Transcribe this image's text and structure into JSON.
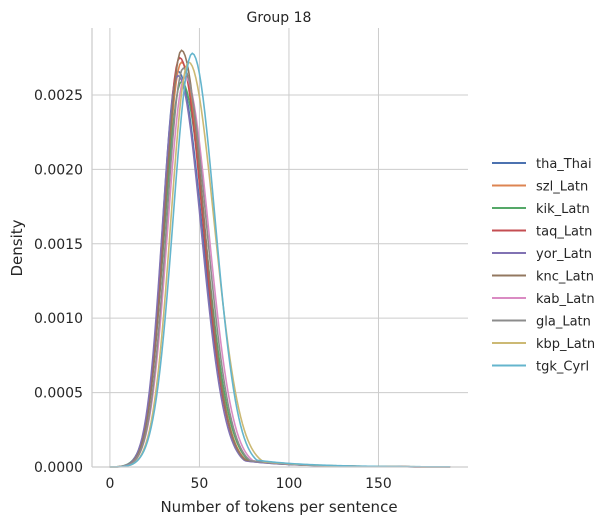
{
  "chart_data": {
    "type": "line",
    "title": "Group 18",
    "xlabel": "Number of tokens per sentence",
    "ylabel": "Density",
    "xlim": [
      -10,
      200
    ],
    "ylim": [
      0,
      0.00295
    ],
    "xticks": [
      0,
      50,
      100,
      150
    ],
    "xtick_labels": [
      "0",
      "50",
      "100",
      "150"
    ],
    "yticks": [
      0,
      0.0005,
      0.001,
      0.0015,
      0.002,
      0.0025
    ],
    "ytick_labels": [
      "0.0000",
      "0.0005",
      "0.0010",
      "0.0015",
      "0.0020",
      "0.0025"
    ],
    "grid": true,
    "legend_position": "right",
    "series": [
      {
        "name": "tha_Thai",
        "color": "#4c72b0",
        "peak_x": 38,
        "peak_y": 0.00266,
        "sd_left": 8.6,
        "sd_right": 13.4,
        "x": [
          0,
          10,
          20,
          30,
          38,
          50,
          60,
          70,
          80,
          90,
          100,
          110,
          120,
          140,
          160,
          180,
          190
        ],
        "y": [
          1e-05,
          0.0001,
          0.0007,
          0.00185,
          0.00266,
          0.00205,
          0.00125,
          0.0007,
          0.00038,
          0.0002,
          9e-05,
          4e-05,
          2e-05,
          1e-05,
          1e-05,
          1e-05,
          0
        ]
      },
      {
        "name": "szl_Latn",
        "color": "#dd8452",
        "peak_x": 40,
        "peak_y": 0.00272,
        "sd_left": 9.4,
        "sd_right": 12.6,
        "x": [
          0,
          10,
          20,
          30,
          40,
          50,
          60,
          70,
          80,
          90,
          100,
          110,
          120,
          140,
          160,
          180,
          190
        ],
        "y": [
          0,
          5e-05,
          0.0005,
          0.00175,
          0.00272,
          0.002,
          0.0012,
          0.00065,
          0.00032,
          0.00016,
          7e-05,
          3e-05,
          1e-05,
          1e-05,
          0,
          0,
          0
        ]
      },
      {
        "name": "kik_Latn",
        "color": "#55a868",
        "peak_x": 40,
        "peak_y": 0.00259,
        "sd_left": 9.6,
        "sd_right": 13.2,
        "x": [
          0,
          10,
          20,
          30,
          40,
          50,
          60,
          70,
          80,
          90,
          100,
          110,
          120,
          140,
          160,
          180,
          190
        ],
        "y": [
          0,
          5e-05,
          0.00048,
          0.00168,
          0.00259,
          0.00198,
          0.00122,
          0.00067,
          0.00034,
          0.00017,
          7e-05,
          3e-05,
          1e-05,
          0,
          0,
          0,
          0
        ]
      },
      {
        "name": "taq_Latn",
        "color": "#c44e52",
        "peak_x": 39,
        "peak_y": 0.00275,
        "sd_left": 9.0,
        "sd_right": 12.8,
        "x": [
          0,
          10,
          20,
          30,
          39,
          50,
          60,
          70,
          80,
          90,
          100,
          110,
          120,
          140,
          160,
          180,
          190
        ],
        "y": [
          0,
          6e-05,
          0.00055,
          0.00185,
          0.00275,
          0.00198,
          0.00118,
          0.00064,
          0.00032,
          0.00016,
          8e-05,
          7e-05,
          2e-05,
          1e-05,
          0,
          0,
          0
        ]
      },
      {
        "name": "yor_Latn",
        "color": "#8172b3",
        "peak_x": 38,
        "peak_y": 0.00263,
        "sd_left": 8.8,
        "sd_right": 13.0,
        "x": [
          0,
          10,
          20,
          30,
          38,
          50,
          60,
          70,
          80,
          90,
          100,
          110,
          120,
          140,
          160,
          180,
          190
        ],
        "y": [
          1e-05,
          9e-05,
          0.00065,
          0.0018,
          0.00263,
          0.00198,
          0.0012,
          0.00066,
          0.00033,
          0.00017,
          8e-05,
          4e-05,
          2e-05,
          1e-05,
          1e-05,
          1e-05,
          0
        ]
      },
      {
        "name": "knc_Latn",
        "color": "#937860",
        "peak_x": 40,
        "peak_y": 0.0028,
        "sd_left": 9.2,
        "sd_right": 12.4,
        "x": [
          0,
          10,
          20,
          30,
          40,
          50,
          60,
          70,
          80,
          90,
          100,
          110,
          120,
          140,
          160,
          180,
          190
        ],
        "y": [
          0,
          5e-05,
          0.00052,
          0.0018,
          0.0028,
          0.00202,
          0.00118,
          0.00062,
          0.0003,
          0.00015,
          7e-05,
          3e-05,
          1e-05,
          1e-05,
          0,
          0,
          0
        ]
      },
      {
        "name": "kab_Latn",
        "color": "#da8bc3",
        "peak_x": 42,
        "peak_y": 0.00262,
        "sd_left": 9.8,
        "sd_right": 13.2,
        "x": [
          0,
          10,
          20,
          30,
          42,
          50,
          60,
          70,
          80,
          90,
          100,
          110,
          120,
          140,
          160,
          180,
          190
        ],
        "y": [
          0,
          4e-05,
          0.00042,
          0.00155,
          0.00262,
          0.00222,
          0.00135,
          0.00075,
          0.00038,
          0.00018,
          8e-05,
          3e-05,
          1e-05,
          0,
          0,
          0,
          0
        ]
      },
      {
        "name": "gla_Latn",
        "color": "#8c8c8c",
        "peak_x": 41,
        "peak_y": 0.00268,
        "sd_left": 9.4,
        "sd_right": 13.0,
        "x": [
          0,
          10,
          20,
          30,
          41,
          50,
          60,
          70,
          80,
          90,
          100,
          110,
          120,
          140,
          160,
          180,
          190
        ],
        "y": [
          0,
          5e-05,
          0.00046,
          0.00168,
          0.00268,
          0.0021,
          0.00126,
          0.00069,
          0.00034,
          0.00017,
          7e-05,
          3e-05,
          1e-05,
          0,
          0,
          0,
          0
        ]
      },
      {
        "name": "kbp_Latn",
        "color": "#ccb974",
        "peak_x": 44,
        "peak_y": 0.00272,
        "sd_left": 10.0,
        "sd_right": 14.2,
        "x": [
          0,
          10,
          20,
          30,
          44,
          50,
          60,
          70,
          80,
          90,
          100,
          110,
          120,
          140,
          160,
          180,
          190
        ],
        "y": [
          0,
          4e-05,
          0.0004,
          0.00148,
          0.00272,
          0.0024,
          0.0016,
          0.00082,
          0.00038,
          0.00017,
          7e-05,
          3e-05,
          1e-05,
          0,
          0,
          0,
          0
        ]
      },
      {
        "name": "tgk_Cyrl",
        "color": "#64b5cd",
        "peak_x": 46,
        "peak_y": 0.00278,
        "sd_left": 10.6,
        "sd_right": 12.6,
        "x": [
          0,
          10,
          20,
          30,
          46,
          50,
          60,
          70,
          80,
          90,
          100,
          110,
          120,
          140,
          160,
          180,
          190
        ],
        "y": [
          0,
          4e-05,
          0.00036,
          0.00135,
          0.00278,
          0.00255,
          0.0015,
          0.00078,
          0.00036,
          0.00016,
          7e-05,
          3e-05,
          1e-05,
          0,
          0,
          0,
          0
        ]
      }
    ]
  }
}
